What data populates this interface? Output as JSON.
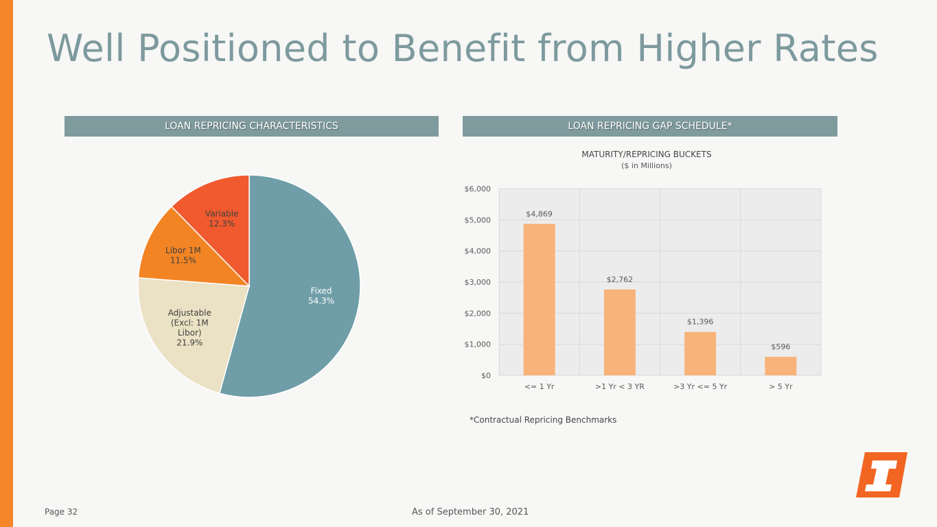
{
  "page": {
    "title": "Well Positioned to Benefit from Higher Rates",
    "page_number": "Page 32",
    "as_of": "As of September 30, 2021",
    "footnote": "*Contractual Repricing Benchmarks",
    "accent_color": "#f5862a"
  },
  "left_header": "LOAN REPRICING CHARACTERISTICS",
  "right_header": "LOAN REPRICING GAP SCHEDULE*",
  "chart_data": [
    {
      "type": "pie",
      "title": "LOAN REPRICING CHARACTERISTICS",
      "slices": [
        {
          "label_lines": [
            "Fixed"
          ],
          "percent_label": "54.3%",
          "value": 54.3,
          "color": "#6f9ea8",
          "label_color": "#ffffff"
        },
        {
          "label_lines": [
            "Adjustable",
            "(Excl: 1M",
            "Libor)"
          ],
          "percent_label": "21.9%",
          "value": 21.9,
          "color": "#ebe1c4",
          "label_color": "#404040"
        },
        {
          "label_lines": [
            "Libor 1M"
          ],
          "percent_label": "11.5%",
          "value": 11.5,
          "color": "#f28424",
          "label_color": "#404040"
        },
        {
          "label_lines": [
            "Variable"
          ],
          "percent_label": "12.3%",
          "value": 12.3,
          "color": "#f05a2e",
          "label_color": "#404040"
        }
      ]
    },
    {
      "type": "bar",
      "title": "MATURITY/REPRICING BUCKETS",
      "subtitle": "($ in Millions)",
      "categories": [
        "<= 1 Yr",
        ">1 Yr < 3 YR",
        ">3 Yr <= 5 Yr",
        "> 5 Yr"
      ],
      "values": [
        4869,
        2762,
        1396,
        596
      ],
      "value_labels": [
        "$4,869",
        "$2,762",
        "$1,396",
        "$596"
      ],
      "ylim": [
        0,
        6000
      ],
      "yticks": [
        0,
        1000,
        2000,
        3000,
        4000,
        5000,
        6000
      ],
      "ytick_labels": [
        "$0",
        "$1,000",
        "$2,000",
        "$3,000",
        "$4,000",
        "$5,000",
        "$6,000"
      ],
      "bar_color": "#f8b37a",
      "grid": true
    }
  ]
}
